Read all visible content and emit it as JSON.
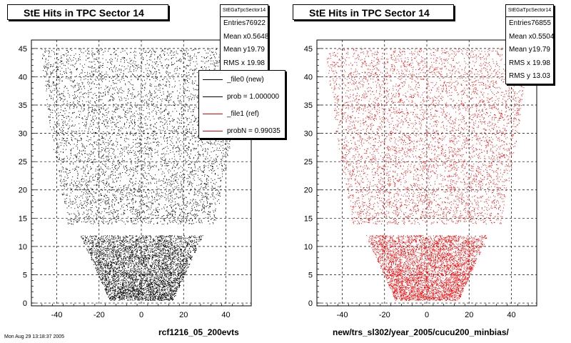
{
  "colors": {
    "black": "#000000",
    "red": "#ff0000"
  },
  "chart_data": [
    {
      "type": "scatter",
      "title": "StE Hits in TPC Sector 14",
      "xlabel": "rcf1216_05_200evts",
      "ylabel": "",
      "xlim": [
        -52,
        52
      ],
      "ylim": [
        -0.5,
        46.5
      ],
      "xticks": [
        -40,
        -20,
        0,
        20,
        40
      ],
      "yticks": [
        0,
        5,
        10,
        15,
        20,
        25,
        30,
        35,
        40,
        45
      ],
      "grid": true,
      "series_color": "#000000",
      "stats": {
        "name": "StEGaTpcSector14",
        "rows": [
          {
            "label": "Entries",
            "value": "76922"
          },
          {
            "label": "Mean x",
            "value": "0.5648"
          },
          {
            "label": "Mean y",
            "value": "19.79"
          },
          {
            "label": "RMS x",
            "value": "19.98"
          }
        ]
      },
      "legend": {
        "placement": "top-right",
        "entries": [
          {
            "label": "_file0 (new)",
            "color": "#000000"
          },
          {
            "label": "prob = 1.000000",
            "color": "#000000"
          },
          {
            "label": "_file1 (ref)",
            "color": "#ff0000"
          },
          {
            "label": "probN = 0.99035",
            "color": "#ff0000"
          }
        ]
      },
      "rows": [
        {
          "y": [
            0.5,
            12
          ],
          "half_width_bottom": 15,
          "half_width_top": 29
        },
        {
          "y": [
            14,
            30
          ],
          "half_width_bottom": 35,
          "half_width_top": 43
        },
        {
          "y": [
            30,
            45
          ],
          "half_width_bottom": 43,
          "half_width_top": 48
        }
      ],
      "holes": [
        {
          "x": -2,
          "y": 38.5
        },
        {
          "x": -8,
          "y": 22
        }
      ]
    },
    {
      "type": "scatter",
      "title": "StE Hits in TPC Sector 14",
      "xlabel": "new/trs_sl302/year_2005/cucu200_minbias/",
      "ylabel": "",
      "xlim": [
        -52,
        52
      ],
      "ylim": [
        -0.5,
        46.5
      ],
      "xticks": [
        -40,
        -20,
        0,
        20,
        40
      ],
      "yticks": [
        0,
        5,
        10,
        15,
        20,
        25,
        30,
        35,
        40,
        45
      ],
      "grid": true,
      "series_color": "#ff0000",
      "stats": {
        "name": "StEGaTpcSector14",
        "rows": [
          {
            "label": "Entries",
            "value": "76855"
          },
          {
            "label": "Mean x",
            "value": "0.5504"
          },
          {
            "label": "Mean y",
            "value": "19.79"
          },
          {
            "label": "RMS x",
            "value": "19.98"
          },
          {
            "label": "RMS y",
            "value": "13.03"
          }
        ]
      },
      "rows": [
        {
          "y": [
            0.5,
            12
          ],
          "half_width_bottom": 15,
          "half_width_top": 29
        },
        {
          "y": [
            14,
            30
          ],
          "half_width_bottom": 35,
          "half_width_top": 43
        },
        {
          "y": [
            30,
            45
          ],
          "half_width_bottom": 43,
          "half_width_top": 48
        }
      ],
      "holes": [
        {
          "x": -2,
          "y": 38.5
        },
        {
          "x": -8,
          "y": 22
        }
      ]
    }
  ],
  "footer": {
    "text": "Mon Aug 29 13:18:37 2005"
  }
}
